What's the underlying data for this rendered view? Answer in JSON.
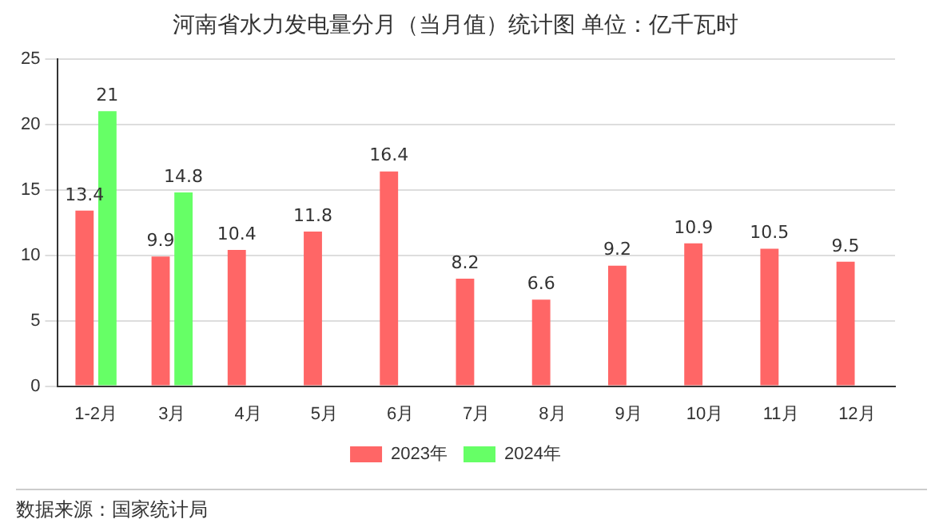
{
  "chart_data": {
    "type": "bar",
    "title": "河南省水力发电量分月（当月值）统计图 单位：亿千瓦时",
    "categories": [
      "1-2月",
      "3月",
      "4月",
      "5月",
      "6月",
      "7月",
      "8月",
      "9月",
      "10月",
      "11月",
      "12月"
    ],
    "series": [
      {
        "name": "2023年",
        "color": "#ff6666",
        "values": [
          13.4,
          9.9,
          10.4,
          11.8,
          16.4,
          8.2,
          6.6,
          9.2,
          10.9,
          10.5,
          9.5
        ]
      },
      {
        "name": "2024年",
        "color": "#66ff66",
        "values": [
          21,
          14.8,
          null,
          null,
          null,
          null,
          null,
          null,
          null,
          null,
          null
        ]
      }
    ],
    "ylim": [
      0,
      25
    ],
    "yticks": [
      0,
      5,
      10,
      15,
      20,
      25
    ],
    "grid": "y",
    "legend": "bottom",
    "data_labels": true,
    "annotations": [
      "数据来源：国家统计局"
    ]
  }
}
